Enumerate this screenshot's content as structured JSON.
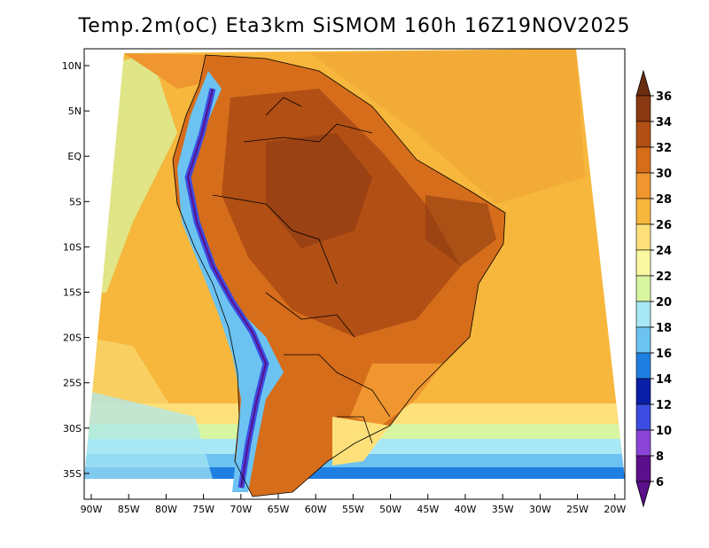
{
  "title": "Temp.2m(oC) Eta3km SiSMOM 160h 16Z19NOV2025",
  "lat_labels": [
    "10N",
    "5N",
    "EQ",
    "5S",
    "10S",
    "15S",
    "20S",
    "25S",
    "30S",
    "35S"
  ],
  "lon_labels": [
    "90W",
    "85W",
    "80W",
    "75W",
    "70W",
    "65W",
    "60W",
    "55W",
    "50W",
    "45W",
    "40W",
    "35W",
    "30W",
    "25W",
    "20W"
  ],
  "colorbar": {
    "labels": [
      "36",
      "34",
      "32",
      "30",
      "28",
      "26",
      "24",
      "22",
      "20",
      "18",
      "16",
      "14",
      "12",
      "10",
      "8",
      "6"
    ],
    "colors": [
      "#6b2d10",
      "#8a3a12",
      "#b14f14",
      "#d66d1b",
      "#ef9630",
      "#f6b73c",
      "#fde07a",
      "#f9f7a0",
      "#d8f5a2",
      "#a8e8f4",
      "#6cc3f2",
      "#1f7fe0",
      "#0a1fa8",
      "#3c4ce0",
      "#8a44d6",
      "#5b0f8a"
    ],
    "top_color": "#6b2d10",
    "bottom_color": "#5b0f8a"
  }
}
